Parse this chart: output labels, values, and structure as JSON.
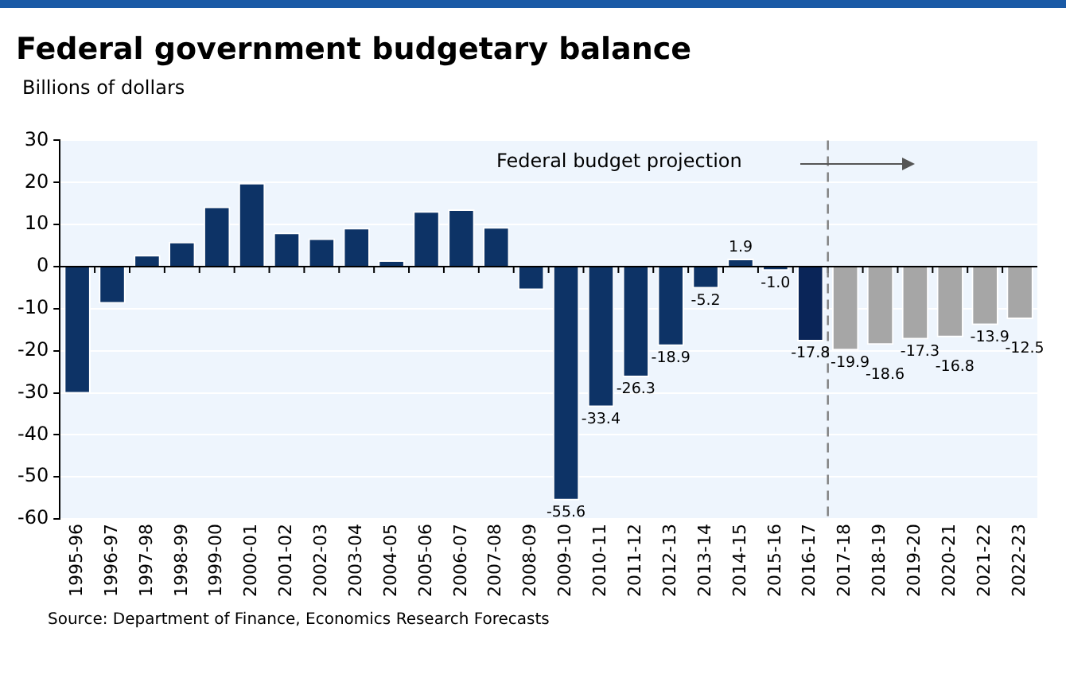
{
  "chart_data": {
    "type": "bar",
    "title": "Federal government budgetary balance",
    "subtitle": "Billions of dollars",
    "categories": [
      "1995-96",
      "1996-97",
      "1997-98",
      "1998-99",
      "1999-00",
      "2000-01",
      "2001-02",
      "2002-03",
      "2003-04",
      "2004-05",
      "2005-06",
      "2006-07",
      "2007-08",
      "2008-09",
      "2009-10",
      "2010-11",
      "2011-12",
      "2012-13",
      "2013-14",
      "2014-15",
      "2015-16",
      "2016-17",
      "2017-18",
      "2018-19",
      "2019-20",
      "2020-21",
      "2021-22",
      "2022-23"
    ],
    "values": [
      -30.2,
      -8.8,
      2.8,
      5.9,
      14.3,
      19.9,
      8.1,
      6.7,
      9.2,
      1.5,
      13.2,
      13.6,
      9.4,
      -5.6,
      -55.6,
      -33.4,
      -26.3,
      -18.9,
      -5.2,
      1.9,
      -1.0,
      -17.8,
      -19.9,
      -18.6,
      -17.3,
      -16.8,
      -13.9,
      -12.5
    ],
    "colors": [
      "#0d3366",
      "#0d3366",
      "#0d3366",
      "#0d3366",
      "#0d3366",
      "#0d3366",
      "#0d3366",
      "#0d3366",
      "#0d3366",
      "#0d3366",
      "#0d3366",
      "#0d3366",
      "#0d3366",
      "#0d3366",
      "#0d3366",
      "#0d3366",
      "#0d3366",
      "#0d3366",
      "#0d3366",
      "#0d3366",
      "#0d3366",
      "#0a2558",
      "#a6a6a6",
      "#a6a6a6",
      "#a6a6a6",
      "#a6a6a6",
      "#a6a6a6",
      "#a6a6a6"
    ],
    "value_labels": [
      null,
      null,
      null,
      null,
      null,
      null,
      null,
      null,
      null,
      null,
      null,
      null,
      null,
      null,
      "-55.6",
      "-33.4",
      "-26.3",
      "-18.9",
      "-5.2",
      "1.9",
      "-1.0",
      "-17.8",
      "-19.9",
      "-18.6",
      "-17.3",
      "-16.8",
      "-13.9",
      "-12.5"
    ],
    "ylim": [
      -60,
      30
    ],
    "yticks": [
      -60,
      -50,
      -40,
      -30,
      -20,
      -10,
      0,
      10,
      20,
      30
    ],
    "grid": "y",
    "legend": false,
    "ref_lines": [
      {
        "axis": "x",
        "value": "2017-18",
        "color": "#7f7f7f",
        "line_style": "dashed"
      }
    ],
    "annotations": [
      "Federal budget projection",
      "Source:  Department of Finance, Economics Research Forecasts"
    ]
  }
}
